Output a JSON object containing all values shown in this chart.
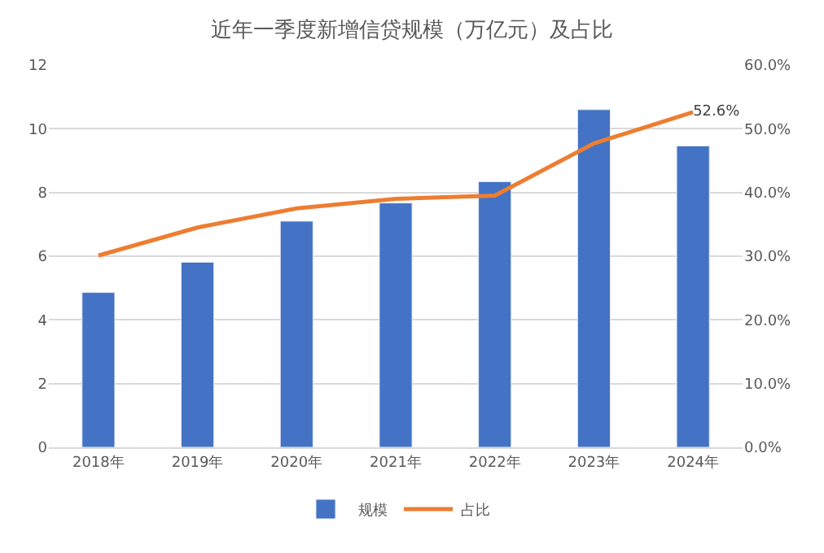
{
  "chart_data": {
    "type": "bar",
    "title": "近年一季度新增信贷规模（万亿元）及占比",
    "categories": [
      "2018年",
      "2019年",
      "2020年",
      "2021年",
      "2022年",
      "2023年",
      "2024年"
    ],
    "series": [
      {
        "name": "规模",
        "color": "#4472c4",
        "values": [
          4.86,
          5.81,
          7.1,
          7.67,
          8.34,
          10.6,
          9.46
        ]
      },
      {
        "name": "占比",
        "type": "line",
        "axis": "y2",
        "color": "#ed7d31",
        "values": [
          30.1,
          34.5,
          37.5,
          39.0,
          39.5,
          47.7,
          52.6
        ],
        "value_labels": [
          null,
          null,
          null,
          null,
          null,
          null,
          "52.6%"
        ]
      }
    ],
    "ylim": [
      0,
      12
    ],
    "yticks": [
      0,
      2,
      4,
      6,
      8,
      10,
      12
    ],
    "y2lim": [
      0,
      60
    ],
    "y2ticks": [
      {
        "value": 0,
        "label": "0.0%"
      },
      {
        "value": 10,
        "label": "10.0%"
      },
      {
        "value": 20,
        "label": "20.0%"
      },
      {
        "value": 30,
        "label": "30.0%"
      },
      {
        "value": 40,
        "label": "40.0%"
      },
      {
        "value": 50,
        "label": "50.0%"
      },
      {
        "value": 60,
        "label": "60.0%"
      }
    ],
    "grid": "y",
    "legend": "bottom",
    "marker": "none",
    "line_style": "solid"
  }
}
